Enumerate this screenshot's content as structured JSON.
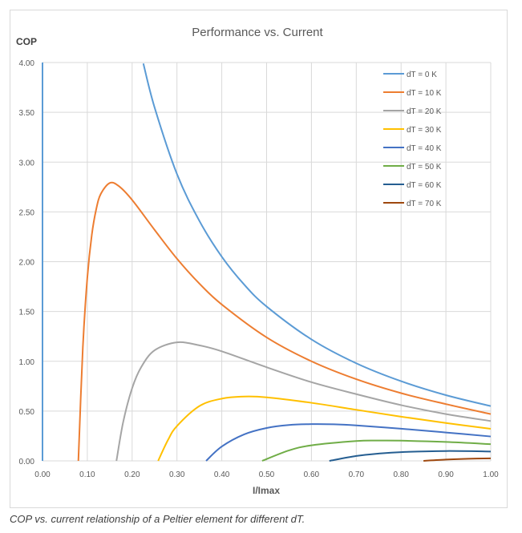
{
  "chart_data": {
    "type": "line",
    "title": "Performance vs. Current",
    "xlabel": "I/Imax",
    "ylabel": "COP",
    "xlim": [
      0,
      1
    ],
    "ylim": [
      0,
      4
    ],
    "xticks": [
      "0.00",
      "0.10",
      "0.20",
      "0.30",
      "0.40",
      "0.50",
      "0.60",
      "0.70",
      "0.80",
      "0.90",
      "1.00"
    ],
    "yticks": [
      "0.00",
      "0.50",
      "1.00",
      "1.50",
      "2.00",
      "2.50",
      "3.00",
      "3.50",
      "4.00"
    ],
    "grid": true,
    "legend_position": "top-right",
    "series": [
      {
        "name": "dT = 0 K",
        "color": "#5b9bd5",
        "segments": [
          [
            [
              0,
              0
            ],
            [
              0,
              4
            ]
          ],
          [
            [
              0.225,
              3.99
            ],
            [
              0.25,
              3.55
            ],
            [
              0.3,
              2.88
            ],
            [
              0.35,
              2.41
            ],
            [
              0.4,
              2.05
            ],
            [
              0.45,
              1.77
            ],
            [
              0.5,
              1.55
            ],
            [
              0.6,
              1.22
            ],
            [
              0.7,
              0.98
            ],
            [
              0.8,
              0.8
            ],
            [
              0.9,
              0.66
            ],
            [
              1.0,
              0.55
            ]
          ]
        ]
      },
      {
        "name": "dT = 10 K",
        "color": "#ed7d31",
        "segments": [
          [
            [
              0.08,
              0
            ],
            [
              0.09,
              1.14
            ],
            [
              0.1,
              1.84
            ],
            [
              0.11,
              2.27
            ],
            [
              0.12,
              2.53
            ],
            [
              0.13,
              2.68
            ],
            [
              0.15,
              2.79
            ],
            [
              0.17,
              2.76
            ],
            [
              0.2,
              2.62
            ],
            [
              0.25,
              2.32
            ],
            [
              0.3,
              2.03
            ],
            [
              0.35,
              1.78
            ],
            [
              0.4,
              1.57
            ],
            [
              0.5,
              1.24
            ],
            [
              0.6,
              1.0
            ],
            [
              0.7,
              0.82
            ],
            [
              0.8,
              0.68
            ],
            [
              0.9,
              0.57
            ],
            [
              1.0,
              0.47
            ]
          ]
        ]
      },
      {
        "name": "dT = 20 K",
        "color": "#a5a5a5",
        "segments": [
          [
            [
              0.165,
              0
            ],
            [
              0.18,
              0.39
            ],
            [
              0.2,
              0.73
            ],
            [
              0.22,
              0.94
            ],
            [
              0.25,
              1.11
            ],
            [
              0.3,
              1.19
            ],
            [
              0.35,
              1.16
            ],
            [
              0.4,
              1.1
            ],
            [
              0.5,
              0.94
            ],
            [
              0.6,
              0.79
            ],
            [
              0.7,
              0.67
            ],
            [
              0.8,
              0.56
            ],
            [
              0.9,
              0.47
            ],
            [
              1.0,
              0.4
            ]
          ]
        ]
      },
      {
        "name": "dT = 30 K",
        "color": "#ffc000",
        "segments": [
          [
            [
              0.258,
              0
            ],
            [
              0.28,
              0.21
            ],
            [
              0.3,
              0.35
            ],
            [
              0.35,
              0.55
            ],
            [
              0.4,
              0.625
            ],
            [
              0.45,
              0.646
            ],
            [
              0.5,
              0.638
            ],
            [
              0.6,
              0.583
            ],
            [
              0.7,
              0.513
            ],
            [
              0.8,
              0.444
            ],
            [
              0.9,
              0.38
            ],
            [
              1.0,
              0.322
            ]
          ]
        ]
      },
      {
        "name": "dT = 40 K",
        "color": "#4472c4",
        "segments": [
          [
            [
              0.365,
              0
            ],
            [
              0.4,
              0.144
            ],
            [
              0.45,
              0.266
            ],
            [
              0.5,
              0.33
            ],
            [
              0.55,
              0.36
            ],
            [
              0.6,
              0.369
            ],
            [
              0.65,
              0.367
            ],
            [
              0.7,
              0.356
            ],
            [
              0.8,
              0.323
            ],
            [
              0.9,
              0.285
            ],
            [
              1.0,
              0.245
            ]
          ]
        ]
      },
      {
        "name": "dT = 50 K",
        "color": "#70ad47",
        "segments": [
          [
            [
              0.49,
              0
            ],
            [
              0.55,
              0.105
            ],
            [
              0.6,
              0.156
            ],
            [
              0.7,
              0.199
            ],
            [
              0.75,
              0.204
            ],
            [
              0.8,
              0.203
            ],
            [
              0.9,
              0.19
            ],
            [
              1.0,
              0.168
            ]
          ]
        ]
      },
      {
        "name": "dT = 60 K",
        "color": "#255e91",
        "segments": [
          [
            [
              0.64,
              0
            ],
            [
              0.7,
              0.049
            ],
            [
              0.75,
              0.073
            ],
            [
              0.8,
              0.088
            ],
            [
              0.9,
              0.099
            ],
            [
              1.0,
              0.094
            ]
          ]
        ]
      },
      {
        "name": "dT = 70 K",
        "color": "#9e480e",
        "segments": [
          [
            [
              0.85,
              0
            ],
            [
              0.9,
              0.013
            ],
            [
              0.95,
              0.021
            ],
            [
              1.0,
              0.025
            ]
          ]
        ]
      }
    ]
  },
  "caption": "COP vs. current relationship of a Peltier element for different dT."
}
